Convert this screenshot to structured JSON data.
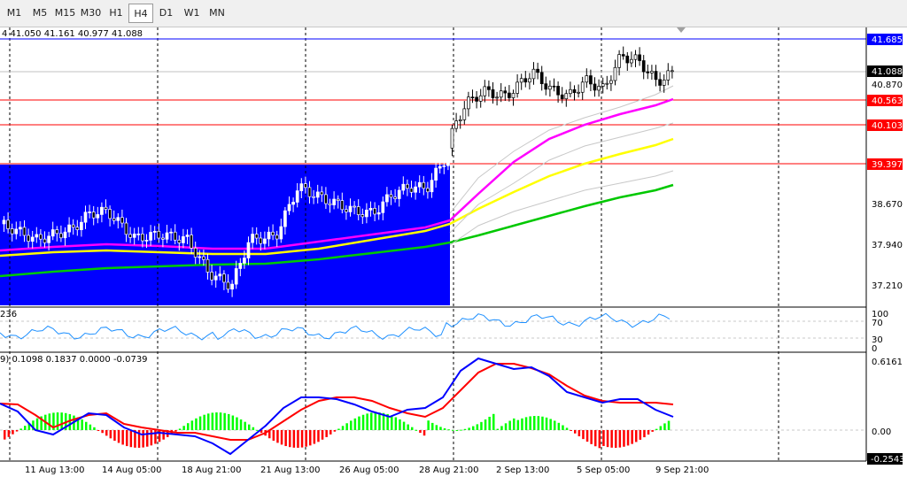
{
  "toolbar": {
    "timeframes": [
      "M1",
      "M5",
      "M15",
      "M30",
      "H1",
      "H4",
      "D1",
      "W1",
      "MN"
    ],
    "active": "H4"
  },
  "ohlc_text": "4  41.050 41.161 40.977 41.088",
  "rsi_text": "236",
  "macd_text": "9) 0.1098 0.1837 0.0000 -0.0739",
  "price_scale": [
    "41.685",
    "41.088",
    "40.870",
    "40.563",
    "40.103",
    "39.397",
    "38.670",
    "37.940",
    "37.210"
  ],
  "rsi_scale": [
    "100",
    "70",
    "30",
    "0"
  ],
  "macd_scale": [
    "0.6161",
    "0.00",
    "-0.2543"
  ],
  "time_labels": [
    "11 Aug 13:00",
    "14 Aug 05:00",
    "18 Aug 21:00",
    "21 Aug 13:00",
    "26 Aug 05:00",
    "28 Aug 21:00",
    "2 Sep 13:00",
    "5 Sep 05:00",
    "9 Sep 21:00"
  ],
  "colors": {
    "zone": "#0000ff",
    "level_line": "#ff0000",
    "top_line": "#0000ff",
    "ma_fast": "#ff00ff",
    "ma_mid": "#ffff00",
    "ma_slow": "#00c800",
    "rsi": "#1e90ff",
    "macd_line": "#0000ff",
    "signal_line": "#ff0000",
    "hist_pos": "#00ff00",
    "hist_neg": "#ff0000"
  }
}
